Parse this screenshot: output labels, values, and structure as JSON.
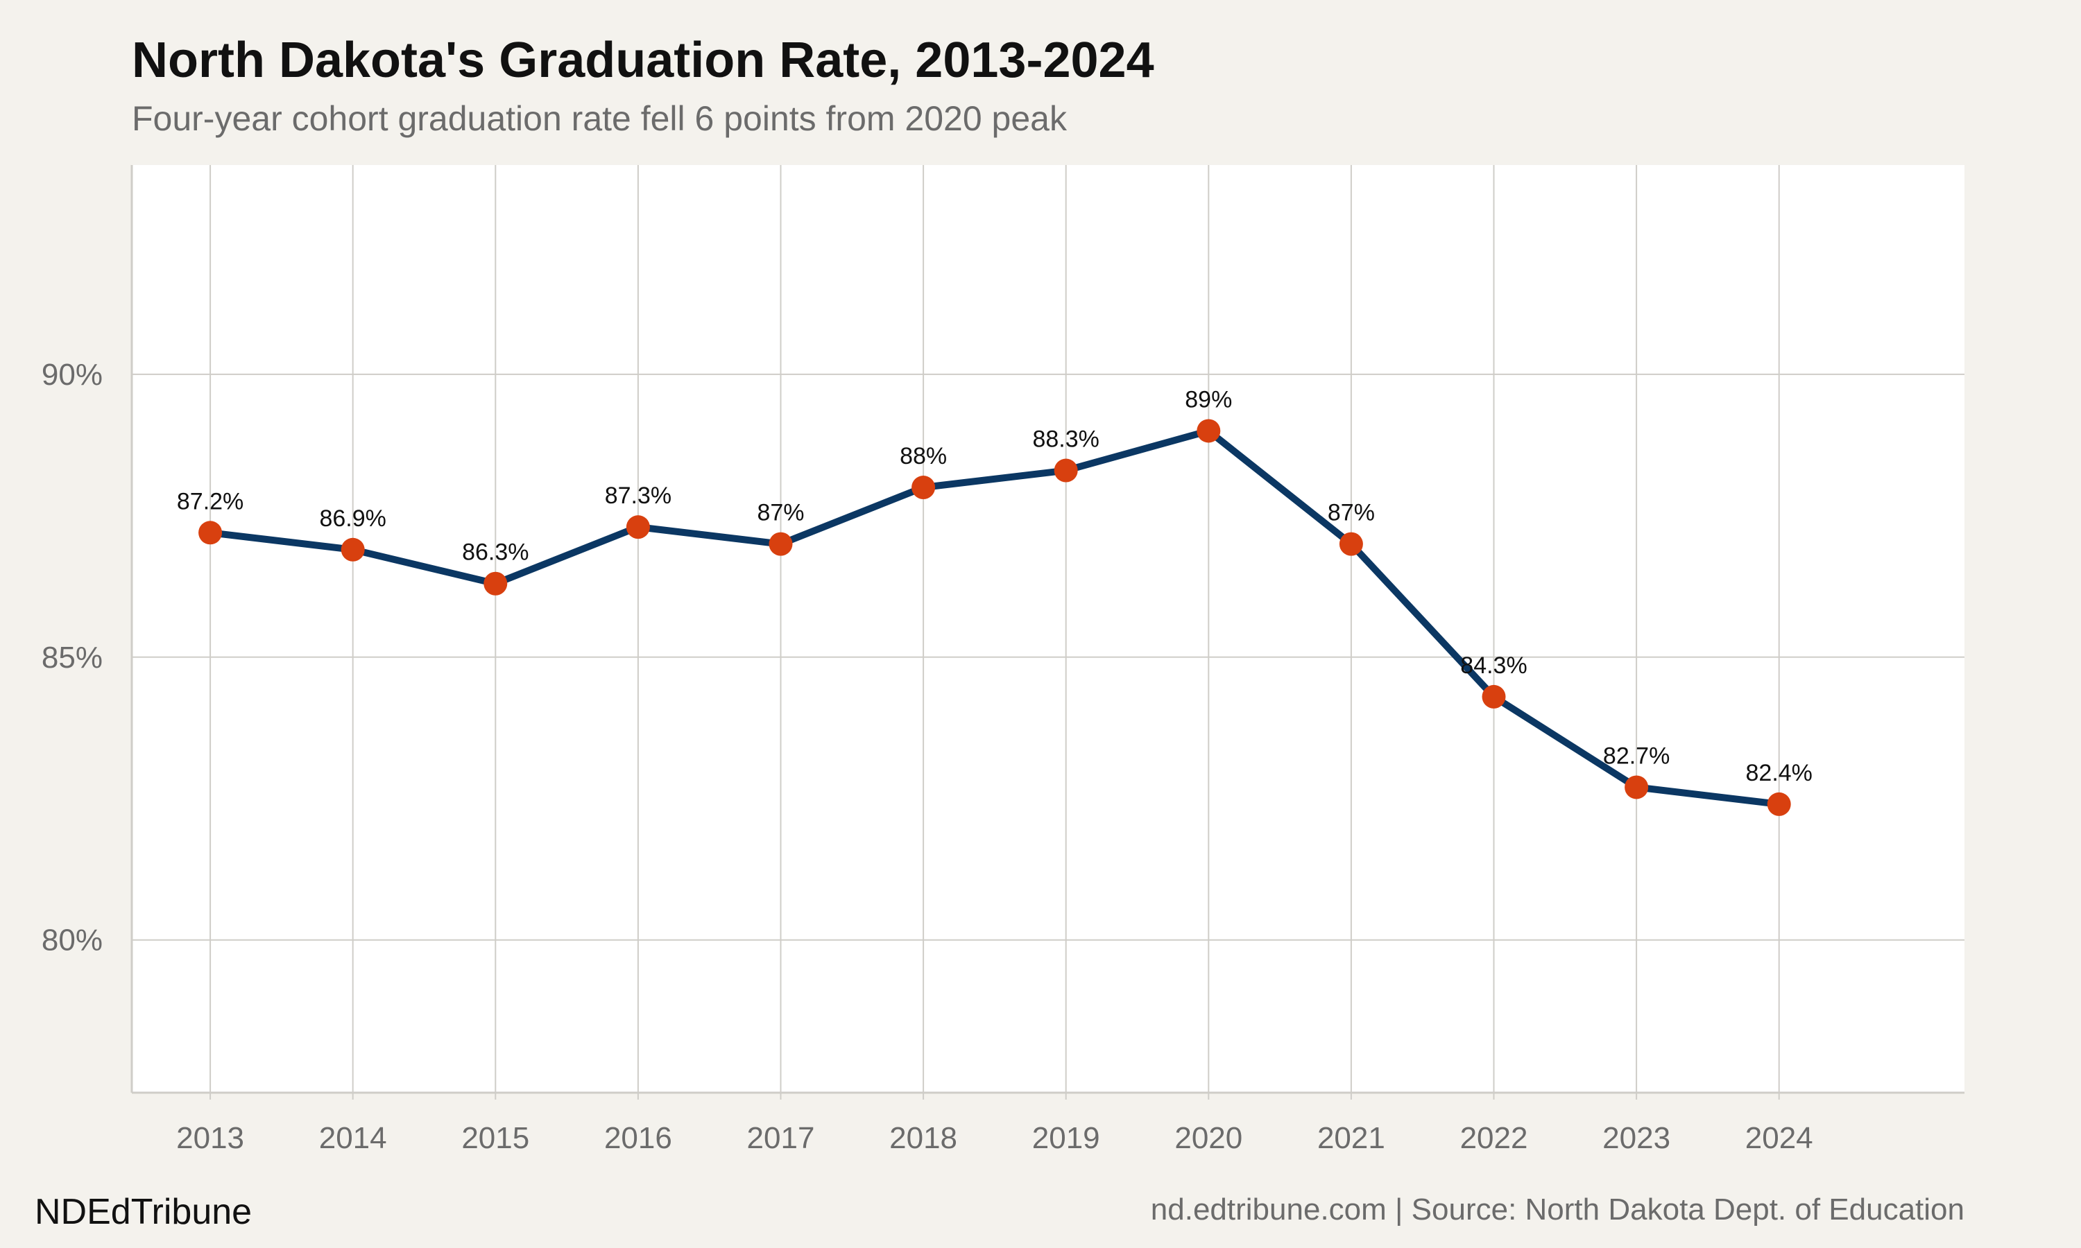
{
  "header": {
    "title": "North Dakota's Graduation Rate, 2013-2024",
    "subtitle": "Four-year cohort graduation rate fell 6 points from 2020 peak"
  },
  "footer": {
    "brand": "NDEdTribune",
    "source": "nd.edtribune.com | Source: North Dakota Dept. of Education"
  },
  "colors": {
    "background": "#f4f2ed",
    "plot_background": "#ffffff",
    "grid": "#cfcdc8",
    "line": "#0b3763",
    "point": "#d8400f"
  },
  "chart_data": {
    "type": "line",
    "title": "North Dakota's Graduation Rate, 2013-2024",
    "subtitle": "Four-year cohort graduation rate fell 6 points from 2020 peak",
    "xlabel": "",
    "ylabel": "",
    "categories": [
      "2013",
      "2014",
      "2015",
      "2016",
      "2017",
      "2018",
      "2019",
      "2020",
      "2021",
      "2022",
      "2023",
      "2024"
    ],
    "values": [
      87.2,
      86.9,
      86.3,
      87.3,
      87.0,
      88.0,
      88.3,
      89.0,
      87.0,
      84.3,
      82.7,
      82.4
    ],
    "data_labels": [
      "87.2%",
      "86.9%",
      "86.3%",
      "87.3%",
      "87%",
      "88%",
      "88.3%",
      "89%",
      "87%",
      "84.3%",
      "82.7%",
      "82.4%"
    ],
    "ylim": [
      77.3,
      93.7
    ],
    "xlim": [
      2012.45,
      2025.3
    ],
    "yticks": [
      80,
      85,
      90
    ],
    "ytick_labels": [
      "80%",
      "85%",
      "90%"
    ],
    "grid": true,
    "legend": "none"
  }
}
